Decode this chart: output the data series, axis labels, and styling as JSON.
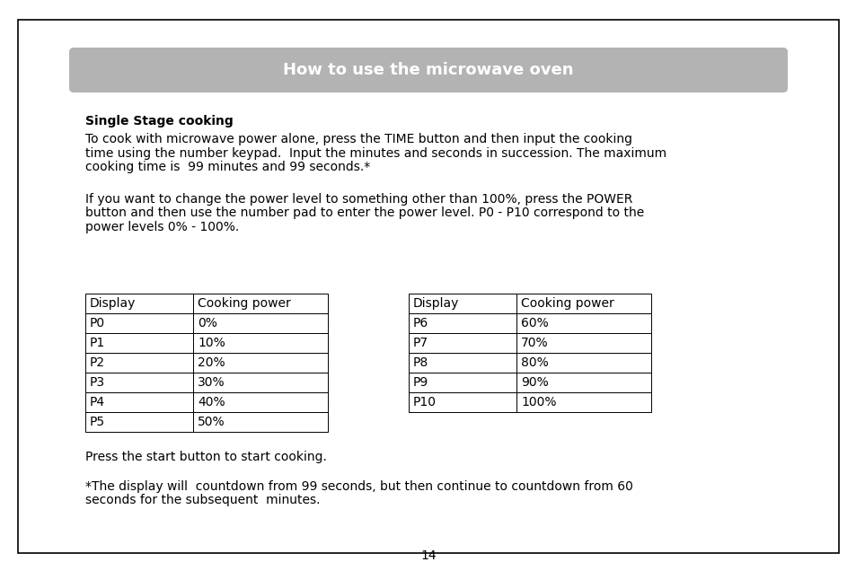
{
  "title": "How to use the microwave oven",
  "title_bg": "#b3b3b3",
  "title_color": "#ffffff",
  "bold_heading": "Single Stage cooking",
  "para1_line1": "To cook with microwave power alone, press the TIME button and then input the cooking",
  "para1_line2": "time using the number keypad.  Input the minutes and seconds in succession. The maximum",
  "para1_line3": "cooking time is  99 minutes and 99 seconds.*",
  "para2_line1": "If you want to change the power level to something other than 100%, press the POWER",
  "para2_line2": "button and then use the number pad to enter the power level. P0 - P10 correspond to the",
  "para2_line3": "power levels 0% - 100%.",
  "table1_headers": [
    "Display",
    "Cooking power"
  ],
  "table1_rows": [
    [
      "P0",
      "0%"
    ],
    [
      "P1",
      "10%"
    ],
    [
      "P2",
      "20%"
    ],
    [
      "P3",
      "30%"
    ],
    [
      "P4",
      "40%"
    ],
    [
      "P5",
      "50%"
    ]
  ],
  "table2_headers": [
    "Display",
    "Cooking power"
  ],
  "table2_rows": [
    [
      "P6",
      "60%"
    ],
    [
      "P7",
      "70%"
    ],
    [
      "P8",
      "80%"
    ],
    [
      "P9",
      "90%"
    ],
    [
      "P10",
      "100%"
    ]
  ],
  "para3": "Press the start button to start cooking.",
  "para4_line1": "*The display will  countdown from 99 seconds, but then continue to countdown from 60",
  "para4_line2": "seconds for the subsequent  minutes.",
  "page_number": "14",
  "bg_color": "#ffffff",
  "border_color": "#000000",
  "text_color": "#000000",
  "font_size": 10.0,
  "title_font_size": 13.0,
  "font_family": "DejaVu Sans"
}
